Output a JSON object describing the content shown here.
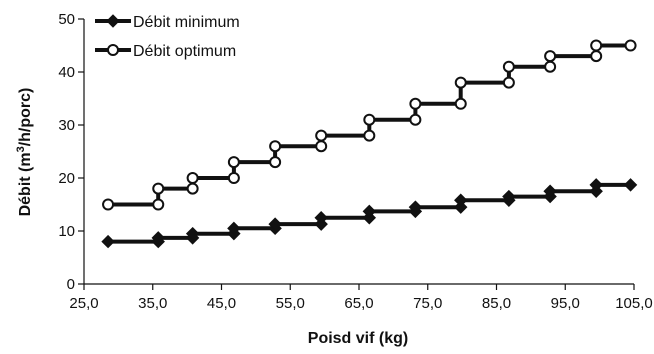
{
  "chart_data": {
    "type": "line",
    "title": "",
    "xlabel": "Poisd vif (kg)",
    "ylabel_main": "Débit (m",
    "ylabel_sup": "3",
    "ylabel_rest": "/h/porc)",
    "xlim": [
      25,
      105
    ],
    "ylim": [
      0,
      50
    ],
    "x_ticks": [
      "25,0",
      "35,0",
      "45,0",
      "55,0",
      "65,0",
      "75,0",
      "85,0",
      "95,0",
      "105,0"
    ],
    "y_ticks": [
      "0",
      "10",
      "20",
      "30",
      "40",
      "50"
    ],
    "grid": false,
    "legend_position": "top-left",
    "line_color": "#111111",
    "series": [
      {
        "name": "Débit minimum",
        "marker": "filled-diamond",
        "points": [
          [
            28.5,
            8
          ],
          [
            35.8,
            8
          ],
          [
            35.8,
            8.7
          ],
          [
            40.8,
            8.7
          ],
          [
            40.8,
            9.5
          ],
          [
            46.8,
            9.5
          ],
          [
            46.8,
            10.5
          ],
          [
            52.8,
            10.5
          ],
          [
            52.8,
            11.3
          ],
          [
            59.5,
            11.3
          ],
          [
            59.5,
            12.5
          ],
          [
            66.5,
            12.5
          ],
          [
            66.5,
            13.7
          ],
          [
            73.2,
            13.7
          ],
          [
            73.2,
            14.5
          ],
          [
            79.8,
            14.5
          ],
          [
            79.8,
            15.8
          ],
          [
            86.8,
            15.8
          ],
          [
            86.8,
            16.5
          ],
          [
            92.8,
            16.5
          ],
          [
            92.8,
            17.5
          ],
          [
            99.5,
            17.5
          ],
          [
            99.5,
            18.7
          ],
          [
            104.5,
            18.7
          ]
        ]
      },
      {
        "name": "Débit optimum",
        "marker": "open-circle",
        "points": [
          [
            28.5,
            15
          ],
          [
            35.8,
            15
          ],
          [
            35.8,
            18
          ],
          [
            40.8,
            18
          ],
          [
            40.8,
            20
          ],
          [
            46.8,
            20
          ],
          [
            46.8,
            23
          ],
          [
            52.8,
            23
          ],
          [
            52.8,
            26
          ],
          [
            59.5,
            26
          ],
          [
            59.5,
            28
          ],
          [
            66.5,
            28
          ],
          [
            66.5,
            31
          ],
          [
            73.2,
            31
          ],
          [
            73.2,
            34
          ],
          [
            79.8,
            34
          ],
          [
            79.8,
            38
          ],
          [
            86.8,
            38
          ],
          [
            86.8,
            41
          ],
          [
            92.8,
            41
          ],
          [
            92.8,
            43
          ],
          [
            99.5,
            43
          ],
          [
            99.5,
            45
          ],
          [
            104.5,
            45
          ]
        ]
      }
    ]
  }
}
